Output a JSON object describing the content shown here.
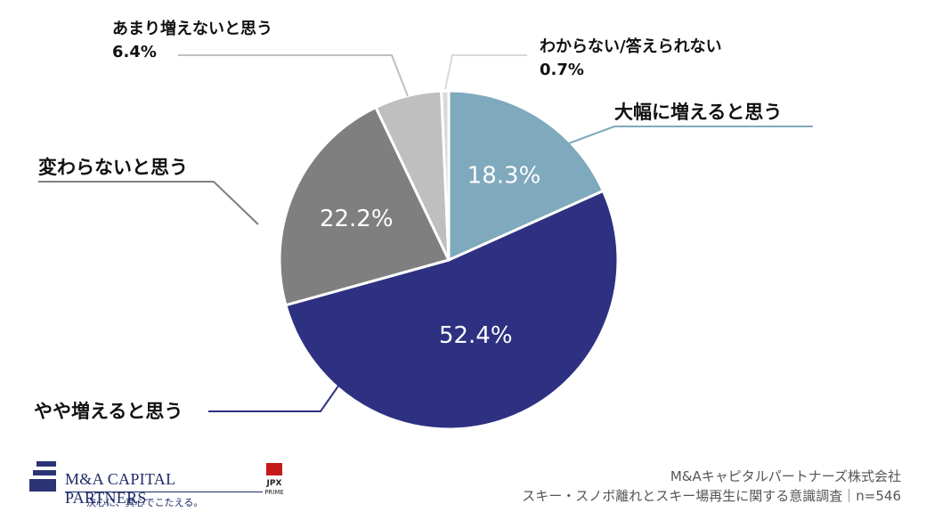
{
  "chart_data": {
    "type": "pie",
    "title": "",
    "start_angle_deg": 0,
    "direction": "clockwise",
    "slices": [
      {
        "label": "大幅に増えると思う",
        "value": 18.3,
        "value_label": "18.3%",
        "color": "#7fa9bc",
        "label_color": "#ffffff"
      },
      {
        "label": "やや増えると思う",
        "value": 52.4,
        "value_label": "52.4%",
        "color": "#2e3181",
        "label_color": "#ffffff"
      },
      {
        "label": "変わらないと思う",
        "value": 22.2,
        "value_label": "22.2%",
        "color": "#7f7f7f",
        "label_color": "#ffffff"
      },
      {
        "label": "あまり増えないと思う",
        "value": 6.4,
        "value_label": "6.4%",
        "color": "#bfbfbf",
        "label_color": "#111111"
      },
      {
        "label": "わからない/答えられない",
        "value": 0.7,
        "value_label": "0.7%",
        "color": "#d9d9d9",
        "label_color": "#111111"
      }
    ]
  },
  "branding": {
    "company_logo_text": "M&A CAPITAL PARTNERS",
    "company_tagline": "決心に、真心でこたえる。",
    "exchange_badge_top": "JPX",
    "exchange_badge_bottom": "PRIME"
  },
  "source": {
    "line1": "M&Aキャピタルパートナーズ株式会社",
    "line2": "スキー・スノボ離れとスキー場再生に関する意識調査｜n=546"
  }
}
